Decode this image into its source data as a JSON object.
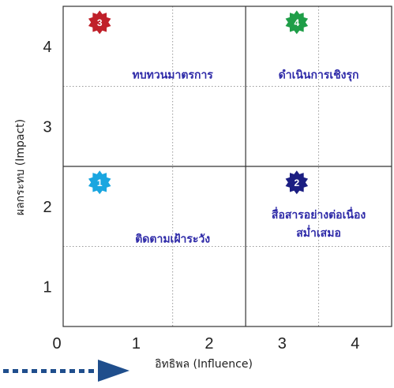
{
  "chart_data": {
    "type": "quadrant",
    "xlabel": "อิทธิพล (Influence)",
    "ylabel": "ผลกระทบ (Impact)",
    "xlim": [
      0,
      4.5
    ],
    "ylim": [
      0.5,
      4.5
    ],
    "x_ticks": [
      {
        "value": 0,
        "label": "0"
      },
      {
        "value": 1,
        "label": "1"
      },
      {
        "value": 2,
        "label": "2"
      },
      {
        "value": 3,
        "label": "3"
      },
      {
        "value": 4,
        "label": "4"
      }
    ],
    "y_ticks": [
      {
        "value": 1,
        "label": "1"
      },
      {
        "value": 2,
        "label": "2"
      },
      {
        "value": 3,
        "label": "3"
      },
      {
        "value": 4,
        "label": "4"
      }
    ],
    "x_divider": 2.5,
    "y_divider": 2.5,
    "dotted_x": [
      1.5,
      3.5
    ],
    "dotted_y": [
      1.5,
      3.5
    ],
    "quadrants": [
      {
        "number": "3",
        "color": "#c0202a",
        "badge_x": 0.5,
        "badge_y": 4.3,
        "label_lines": [
          "ทบทวนมาตรการ"
        ],
        "label_x": 1.5,
        "label_y": 3.6
      },
      {
        "number": "4",
        "color": "#1f9e48",
        "badge_x": 3.2,
        "badge_y": 4.3,
        "label_lines": [
          "ดำเนินการเชิงรุก"
        ],
        "label_x": 3.5,
        "label_y": 3.6
      },
      {
        "number": "1",
        "color": "#1aa6e0",
        "badge_x": 0.5,
        "badge_y": 2.3,
        "label_lines": [
          "ติดตามเฝ้าระวัง"
        ],
        "label_x": 1.5,
        "label_y": 1.55
      },
      {
        "number": "2",
        "color": "#1b1e82",
        "badge_x": 3.2,
        "badge_y": 2.3,
        "label_lines": [
          "สื่อสารอย่างต่อเนื่อง",
          "สม่ำเสมอ"
        ],
        "label_x": 3.5,
        "label_y": 1.85
      }
    ]
  },
  "arrow": {
    "color": "#1f4e8c"
  },
  "colors": {
    "grid": "#333333",
    "dotted": "#999999",
    "text": "#2e2aa8"
  }
}
